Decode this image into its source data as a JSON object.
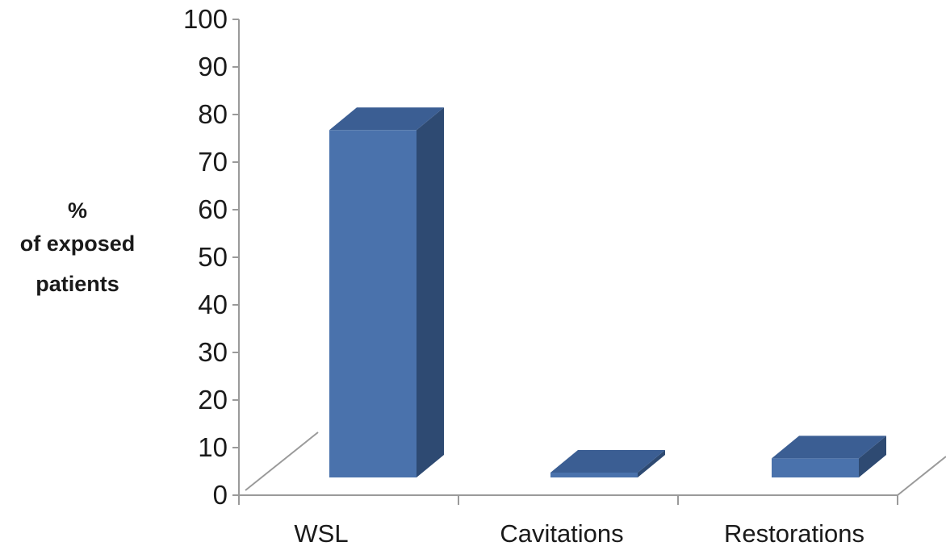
{
  "chart_data": {
    "type": "bar",
    "style": "3d-column",
    "title": "",
    "xlabel": "",
    "ylabel_lines": [
      "%",
      "of exposed",
      "patients"
    ],
    "categories": [
      "WSL",
      "Cavitations",
      "Restorations"
    ],
    "series": [
      {
        "values": [
          73,
          1,
          4
        ]
      }
    ],
    "ylim": [
      0,
      100
    ],
    "yticks": [
      "0",
      "10",
      "20",
      "30",
      "40",
      "50",
      "60",
      "70",
      "80",
      "90",
      "100"
    ],
    "grid": false,
    "legend": "none",
    "colors": {
      "bar_front": "#4A72AC",
      "bar_top": "#3B5E93",
      "bar_side": "#2E4A72",
      "axis": "#9A9A9A"
    }
  }
}
